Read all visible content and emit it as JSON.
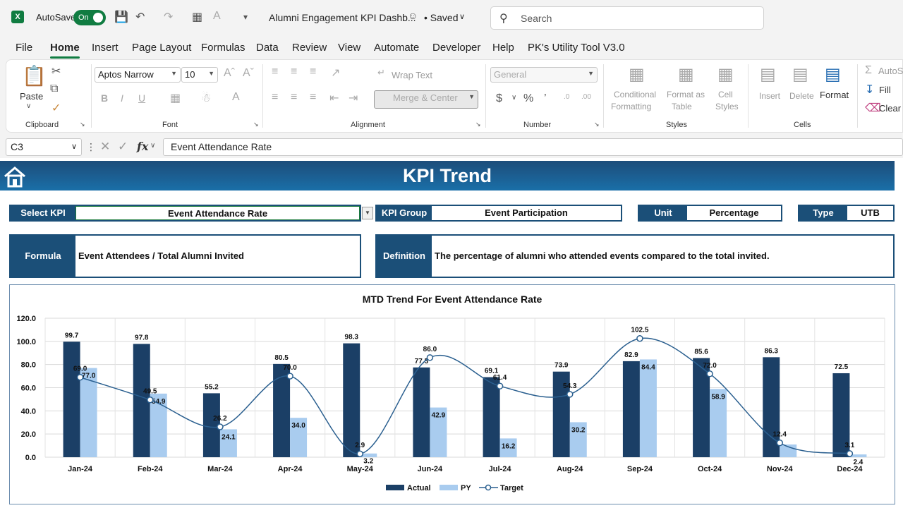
{
  "titlebar": {
    "autosave_label": "AutoSave",
    "toggle_label": "On",
    "doc_title": "Alumni Engagement KPI Dashb...",
    "saved_label": "• Saved",
    "search_placeholder": "Search"
  },
  "menu": [
    "File",
    "Home",
    "Insert",
    "Page Layout",
    "Formulas",
    "Data",
    "Review",
    "View",
    "Automate",
    "Developer",
    "Help",
    "PK's Utility Tool V3.0"
  ],
  "ribbon": {
    "paste": "Paste",
    "clipboard": "Clipboard",
    "font_name": "Aptos Narrow",
    "font_size": "10",
    "font": "Font",
    "wrap_text": "Wrap Text",
    "merge_center": "Merge & Center",
    "alignment": "Alignment",
    "number_format": "General",
    "number": "Number",
    "cond_fmt_1": "Conditional",
    "cond_fmt_2": "Formatting",
    "fmt_table_1": "Format as",
    "fmt_table_2": "Table",
    "cell_styles_1": "Cell",
    "cell_styles_2": "Styles",
    "styles": "Styles",
    "insert": "Insert",
    "delete": "Delete",
    "format": "Format",
    "cells": "Cells",
    "autosum": "AutoS",
    "fill": "Fill",
    "clear": "Clear"
  },
  "formula_bar": {
    "name_box": "C3",
    "fx": "fx",
    "content": "Event Attendance Rate"
  },
  "dashboard": {
    "title": "KPI Trend",
    "select_kpi_label": "Select KPI",
    "select_kpi_value": "Event Attendance Rate",
    "kpi_group_label": "KPI Group",
    "kpi_group_value": "Event Participation",
    "unit_label": "Unit",
    "unit_value": "Percentage",
    "type_label": "Type",
    "type_value": "UTB",
    "formula_label": "Formula",
    "formula_value": "Event Attendees / Total Alumni Invited",
    "definition_label": "Definition",
    "definition_value": "The percentage of alumni who attended events compared to the total invited."
  },
  "chart_data": {
    "type": "bar",
    "title": "MTD Trend For Event Attendance Rate",
    "categories": [
      "Jan-24",
      "Feb-24",
      "Mar-24",
      "Apr-24",
      "May-24",
      "Jun-24",
      "Jul-24",
      "Aug-24",
      "Sep-24",
      "Oct-24",
      "Nov-24",
      "Dec-24"
    ],
    "series": [
      {
        "name": "Actual",
        "kind": "bar",
        "color": "#1b3f66",
        "values": [
          99.7,
          97.8,
          55.2,
          80.5,
          98.3,
          77.5,
          69.1,
          73.9,
          82.9,
          85.6,
          86.3,
          72.5
        ]
      },
      {
        "name": "PY",
        "kind": "bar",
        "color": "#a9ccef",
        "values": [
          77.0,
          54.9,
          24.1,
          34.0,
          3.2,
          42.9,
          16.2,
          30.2,
          84.4,
          58.9,
          11.0,
          2.4
        ]
      },
      {
        "name": "Target",
        "kind": "line",
        "color": "#2a5f8f",
        "values": [
          69.0,
          49.5,
          26.2,
          70.0,
          2.9,
          86.0,
          61.4,
          54.3,
          102.5,
          72.0,
          12.4,
          3.1
        ]
      }
    ],
    "ylim": [
      0,
      120
    ],
    "yticks": [
      "0.0",
      "20.0",
      "40.0",
      "60.0",
      "80.0",
      "100.0",
      "120.0"
    ],
    "grid": true,
    "legend": "bottom",
    "labels": {
      "Actual": [
        "99.7",
        "97.8",
        "55.2",
        "80.5",
        "98.3",
        "77.5",
        "69.1",
        "73.9",
        "82.9",
        "85.6",
        "86.3",
        "72.5"
      ],
      "PY": [
        "77.0",
        "54.9",
        "24.1",
        "34.0",
        "3.2",
        "42.9",
        "16.2",
        "30.2",
        "84.4",
        "58.9",
        "",
        "2.4"
      ],
      "Target": [
        "69.0",
        "49.5",
        "26.2",
        "70.0",
        "2.9",
        "86.0",
        "61.4",
        "54.3",
        "102.5",
        "72.0",
        "12.4",
        "3.1"
      ]
    }
  }
}
